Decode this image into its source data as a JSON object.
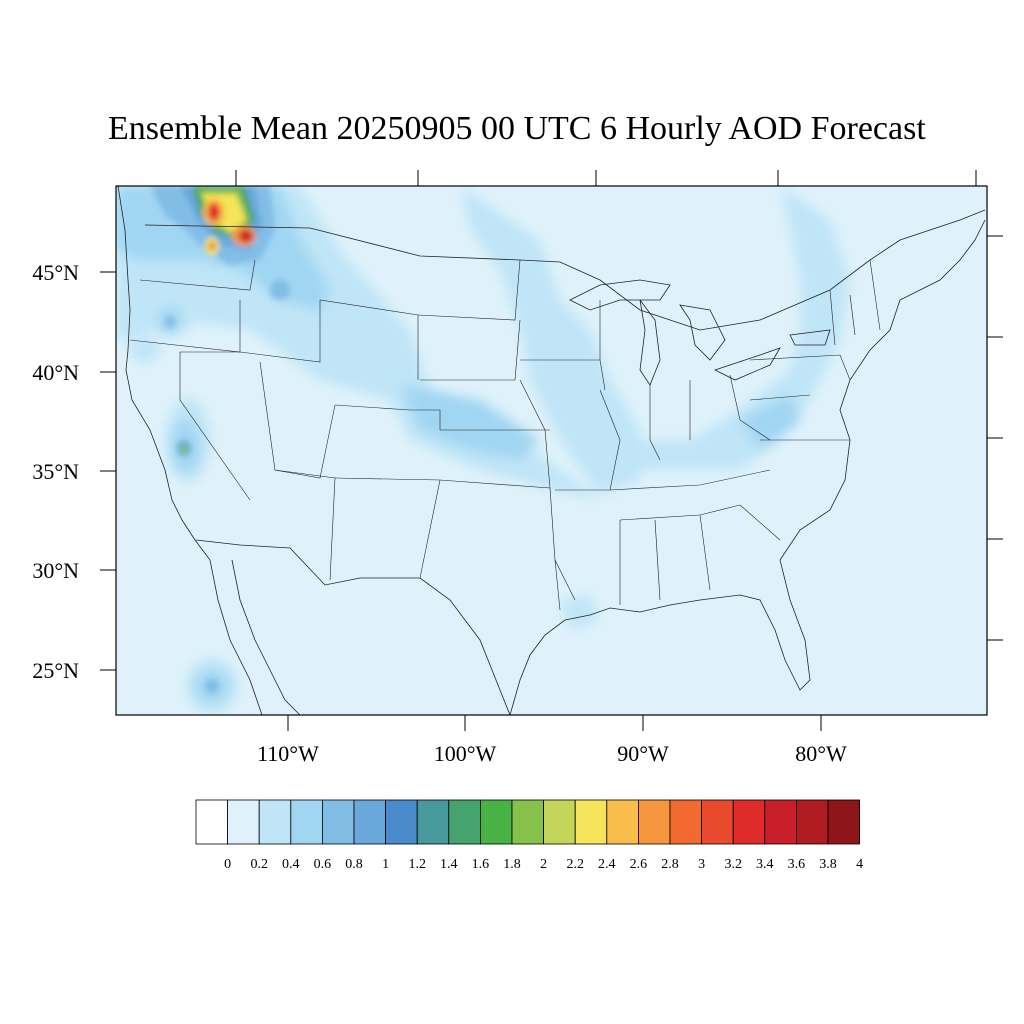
{
  "title": "Ensemble Mean 20250905 00 UTC 6 Hourly AOD Forecast",
  "map": {
    "lon_labels": [
      "110°W",
      "100°W",
      "90°W",
      "80°W"
    ],
    "lat_labels": [
      "45°N",
      "40°N",
      "35°N",
      "30°N",
      "25°N"
    ],
    "background_color": "#dff2fb"
  },
  "colorbar": {
    "labels": [
      "0",
      "0.2",
      "0.4",
      "0.6",
      "0.8",
      "1",
      "1.2",
      "1.4",
      "1.6",
      "1.8",
      "2",
      "2.2",
      "2.4",
      "2.6",
      "2.8",
      "3",
      "3.2",
      "3.4",
      "3.6",
      "3.8",
      "4"
    ],
    "colors": [
      "#ffffff",
      "#dff2fb",
      "#bfe5f7",
      "#a0d6f2",
      "#82bde6",
      "#6aa8dc",
      "#4a8bcb",
      "#48999c",
      "#45a36d",
      "#48b245",
      "#86c24a",
      "#c4d65a",
      "#f6e45a",
      "#f8bd4b",
      "#f6963e",
      "#f26a30",
      "#e9492c",
      "#e02b2b",
      "#c91f2a",
      "#b01c22",
      "#8e161b"
    ]
  },
  "chart_data": {
    "type": "heatmap",
    "title": "Ensemble Mean 20250905 00 UTC 6 Hourly AOD Forecast",
    "region": "Continental United States",
    "lon_range": [
      -119,
      -71
    ],
    "lat_range": [
      23,
      49.5
    ],
    "lon_ticks": [
      "110°W",
      "100°W",
      "90°W",
      "80°W"
    ],
    "lat_ticks": [
      "45°N",
      "40°N",
      "35°N",
      "30°N",
      "25°N"
    ],
    "colorbar_levels": [
      0,
      0.2,
      0.4,
      0.6,
      0.8,
      1,
      1.2,
      1.4,
      1.6,
      1.8,
      2,
      2.2,
      2.4,
      2.6,
      2.8,
      3,
      3.2,
      3.4,
      3.6,
      3.8,
      4
    ],
    "features": [
      {
        "lon": -112,
        "lat": 47.8,
        "peak_aod": 3.8
      },
      {
        "lon": -109.5,
        "lat": 46.8,
        "peak_aod": 3.4
      },
      {
        "lon": -111,
        "lat": 46.4,
        "peak_aod": 2.8
      },
      {
        "lon": -114,
        "lat": 36.2,
        "peak_aod": 1.8
      },
      {
        "lon": -115,
        "lat": 42.5,
        "peak_aod": 1.0
      },
      {
        "lon": -114.5,
        "lat": 24.2,
        "peak_aod": 0.8
      },
      {
        "lon": -101,
        "lat": 38.5,
        "peak_aod": 0.6
      }
    ]
  }
}
